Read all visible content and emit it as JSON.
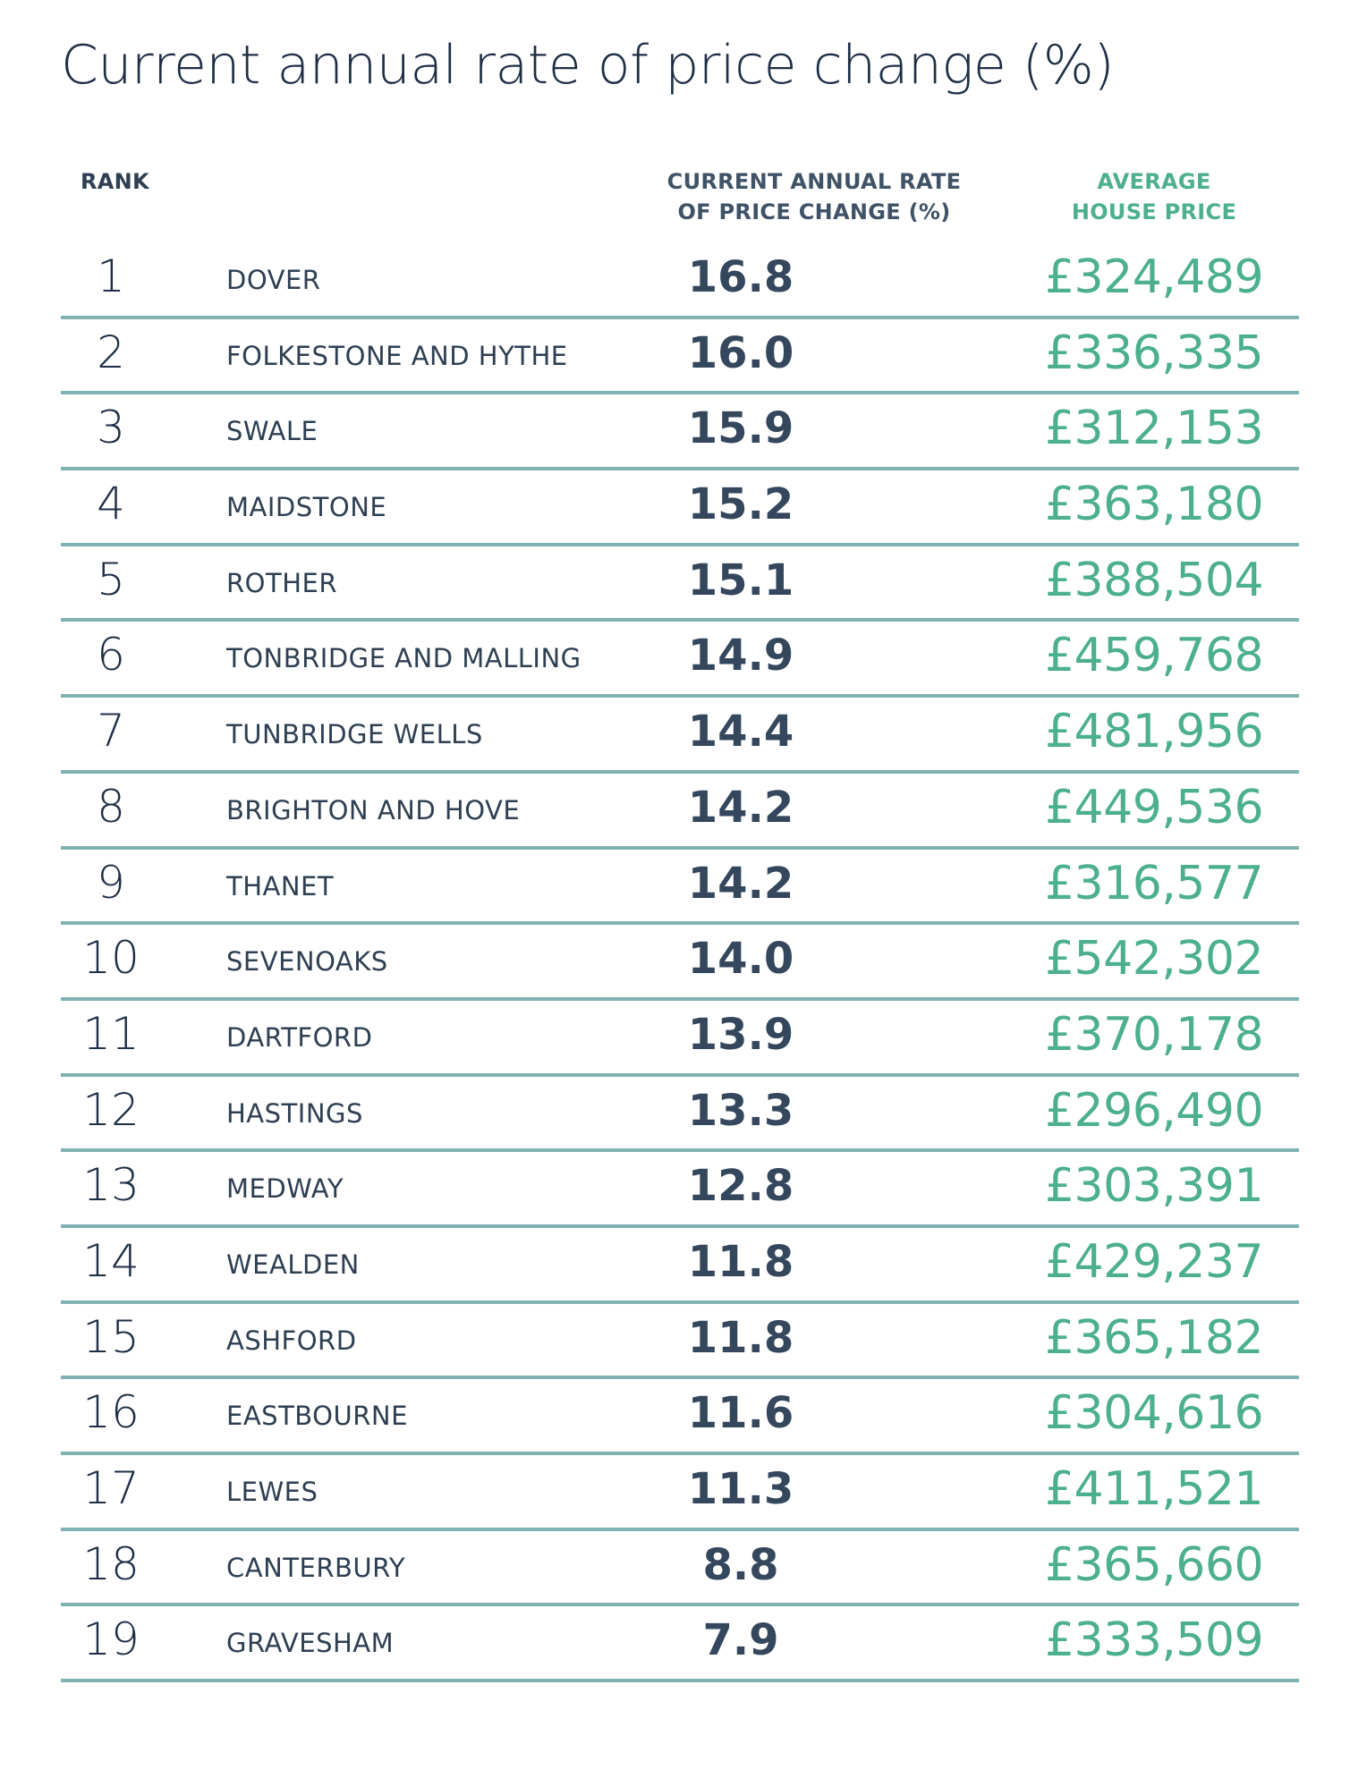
{
  "title": "Current annual rate of price change (%)",
  "headers": {
    "rank": "RANK",
    "rate_line1": "CURRENT ANNUAL RATE",
    "rate_line2": "OF PRICE CHANGE (%)",
    "price_line1": "AVERAGE",
    "price_line2": "HOUSE PRICE"
  },
  "colors": {
    "accent_green": "#4caf8f",
    "rule_teal": "#7eb3b1",
    "text_navy": "#2e3f52"
  },
  "rows": [
    {
      "rank": "1",
      "area": "DOVER",
      "rate": "16.8",
      "price": "£324,489"
    },
    {
      "rank": "2",
      "area": "FOLKESTONE AND HYTHE",
      "rate": "16.0",
      "price": "£336,335"
    },
    {
      "rank": "3",
      "area": "SWALE",
      "rate": "15.9",
      "price": "£312,153"
    },
    {
      "rank": "4",
      "area": "MAIDSTONE",
      "rate": "15.2",
      "price": "£363,180"
    },
    {
      "rank": "5",
      "area": "ROTHER",
      "rate": "15.1",
      "price": "£388,504"
    },
    {
      "rank": "6",
      "area": "TONBRIDGE AND MALLING",
      "rate": "14.9",
      "price": "£459,768"
    },
    {
      "rank": "7",
      "area": "TUNBRIDGE WELLS",
      "rate": "14.4",
      "price": "£481,956"
    },
    {
      "rank": "8",
      "area": "BRIGHTON AND HOVE",
      "rate": "14.2",
      "price": "£449,536"
    },
    {
      "rank": "9",
      "area": "THANET",
      "rate": "14.2",
      "price": "£316,577"
    },
    {
      "rank": "10",
      "area": "SEVENOAKS",
      "rate": "14.0",
      "price": "£542,302"
    },
    {
      "rank": "11",
      "area": "DARTFORD",
      "rate": "13.9",
      "price": "£370,178"
    },
    {
      "rank": "12",
      "area": "HASTINGS",
      "rate": "13.3",
      "price": "£296,490"
    },
    {
      "rank": "13",
      "area": "MEDWAY",
      "rate": "12.8",
      "price": "£303,391"
    },
    {
      "rank": "14",
      "area": "WEALDEN",
      "rate": "11.8",
      "price": "£429,237"
    },
    {
      "rank": "15",
      "area": "ASHFORD",
      "rate": "11.8",
      "price": "£365,182"
    },
    {
      "rank": "16",
      "area": "EASTBOURNE",
      "rate": "11.6",
      "price": "£304,616"
    },
    {
      "rank": "17",
      "area": "LEWES",
      "rate": "11.3",
      "price": "£411,521"
    },
    {
      "rank": "18",
      "area": "CANTERBURY",
      "rate": "8.8",
      "price": "£365,660"
    },
    {
      "rank": "19",
      "area": "GRAVESHAM",
      "rate": "7.9",
      "price": "£333,509"
    }
  ]
}
